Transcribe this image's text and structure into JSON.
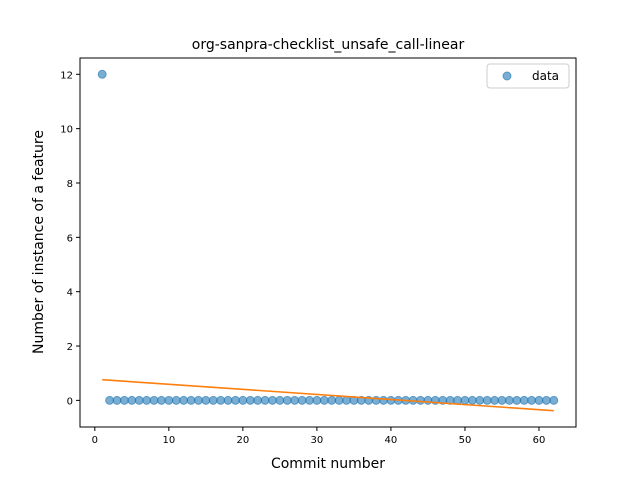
{
  "chart_data": {
    "type": "scatter",
    "title": "org-sanpra-checklist_unsafe_call-linear",
    "xlabel": "Commit number",
    "ylabel": "Number of instance of a feature",
    "xlim": [
      -2,
      65
    ],
    "ylim": [
      -0.98,
      12.6
    ],
    "xticks": [
      0,
      10,
      20,
      30,
      40,
      50,
      60
    ],
    "yticks": [
      0,
      2,
      4,
      6,
      8,
      10,
      12
    ],
    "grid": false,
    "legend_position": "top-right",
    "series": [
      {
        "name": "data",
        "kind": "scatter",
        "color": "#1f77b4",
        "x": [
          1,
          2,
          3,
          4,
          5,
          6,
          7,
          8,
          9,
          10,
          11,
          12,
          13,
          14,
          15,
          16,
          17,
          18,
          19,
          20,
          21,
          22,
          23,
          24,
          25,
          26,
          27,
          28,
          29,
          30,
          31,
          32,
          33,
          34,
          35,
          36,
          37,
          38,
          39,
          40,
          41,
          42,
          43,
          44,
          45,
          46,
          47,
          48,
          49,
          50,
          51,
          52,
          53,
          54,
          55,
          56,
          57,
          58,
          59,
          60,
          61,
          62
        ],
        "y": [
          12,
          0,
          0,
          0,
          0,
          0,
          0,
          0,
          0,
          0,
          0,
          0,
          0,
          0,
          0,
          0,
          0,
          0,
          0,
          0,
          0,
          0,
          0,
          0,
          0,
          0,
          0,
          0,
          0,
          0,
          0,
          0,
          0,
          0,
          0,
          0,
          0,
          0,
          0,
          0,
          0,
          0,
          0,
          0,
          0,
          0,
          0,
          0,
          0,
          0,
          0,
          0,
          0,
          0,
          0,
          0,
          0,
          0,
          0,
          0,
          0,
          0
        ]
      },
      {
        "kind": "line",
        "color": "#ff7f0e",
        "x": [
          1,
          62
        ],
        "y": [
          0.76,
          -0.38
        ]
      }
    ]
  }
}
